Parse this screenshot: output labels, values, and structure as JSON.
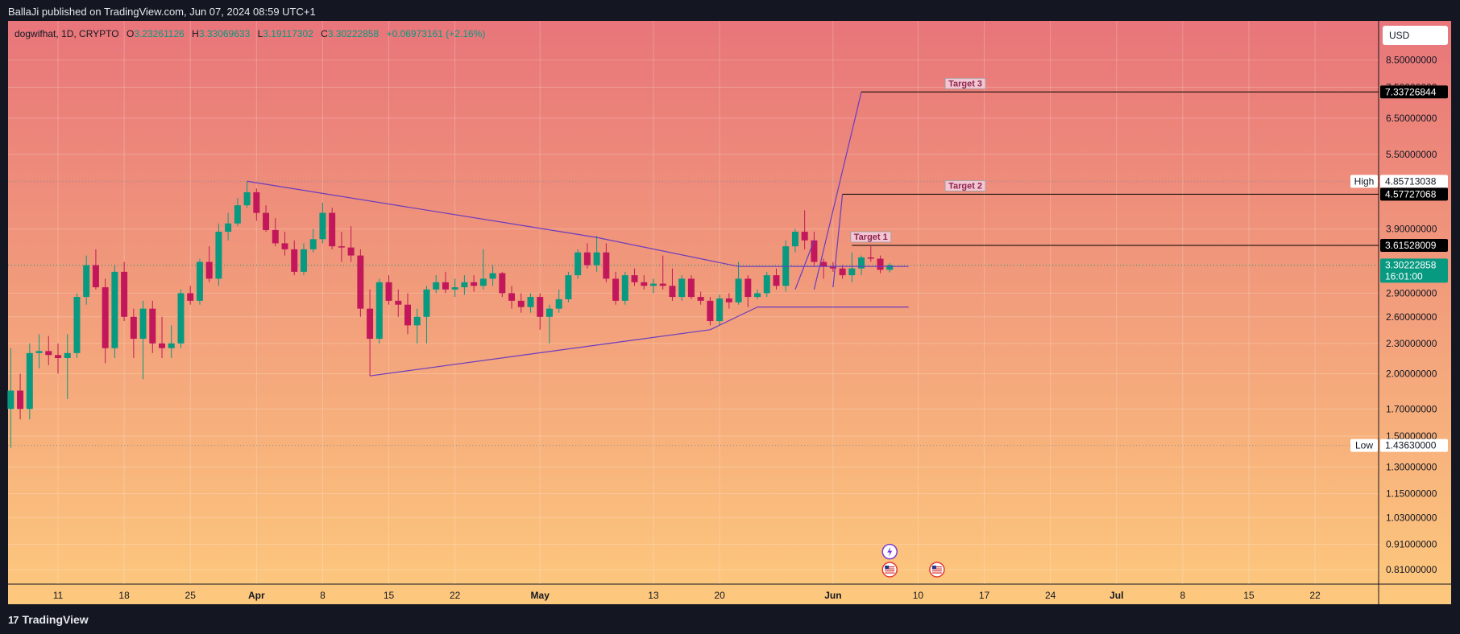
{
  "header": {
    "published_line": "BallaJi published on TradingView.com, Jun 07, 2024 08:59 UTC+1"
  },
  "legend": {
    "symbol": "dogwifhat, 1D, CRYPTO",
    "o_label": "O",
    "o_value": "3.23261126",
    "h_label": "H",
    "h_value": "3.33069633",
    "l_label": "L",
    "l_value": "3.19117302",
    "c_label": "C",
    "c_value": "3.30222858",
    "change": "+0.06973161 (+2.16%)"
  },
  "currency_button": "USD",
  "footer": {
    "brand": "TradingView",
    "brand_mark": "17"
  },
  "colors": {
    "bg_top": "#e8757a",
    "bg_bottom": "#fdc97d",
    "up": "#089981",
    "down": "#c2185b",
    "drawing": "#6a3bbf",
    "frame": "#141722",
    "current_price": "#089981"
  },
  "chart_data": {
    "type": "candlestick",
    "y_scale": "log",
    "y_range": [
      0.75,
      9.0
    ],
    "y_ticks": [
      {
        "value": 0.81,
        "label": "0.81000000"
      },
      {
        "value": 0.91,
        "label": "0.91000000"
      },
      {
        "value": 1.03,
        "label": "1.03000000"
      },
      {
        "value": 1.15,
        "label": "1.15000000"
      },
      {
        "value": 1.3,
        "label": "1.30000000"
      },
      {
        "value": 1.5,
        "label": "1.50000000"
      },
      {
        "value": 1.7,
        "label": "1.70000000"
      },
      {
        "value": 2.0,
        "label": "2.00000000"
      },
      {
        "value": 2.3,
        "label": "2.30000000"
      },
      {
        "value": 2.6,
        "label": "2.60000000"
      },
      {
        "value": 2.9,
        "label": "2.90000000"
      },
      {
        "value": 3.9,
        "label": "3.90000000"
      },
      {
        "value": 5.5,
        "label": "5.50000000"
      },
      {
        "value": 6.5,
        "label": "6.50000000"
      },
      {
        "value": 7.5,
        "label": "7.50000000"
      },
      {
        "value": 8.5,
        "label": "8.50000000"
      }
    ],
    "x_ticks": [
      {
        "date": "2024-03-11",
        "label": "11",
        "bold": false
      },
      {
        "date": "2024-03-18",
        "label": "18",
        "bold": false
      },
      {
        "date": "2024-03-25",
        "label": "25",
        "bold": false
      },
      {
        "date": "2024-04-01",
        "label": "Apr",
        "bold": true
      },
      {
        "date": "2024-04-08",
        "label": "8",
        "bold": false
      },
      {
        "date": "2024-04-15",
        "label": "15",
        "bold": false
      },
      {
        "date": "2024-04-22",
        "label": "22",
        "bold": false
      },
      {
        "date": "2024-05-01",
        "label": "May",
        "bold": true
      },
      {
        "date": "2024-05-13",
        "label": "13",
        "bold": false
      },
      {
        "date": "2024-05-20",
        "label": "20",
        "bold": false
      },
      {
        "date": "2024-06-01",
        "label": "Jun",
        "bold": true
      },
      {
        "date": "2024-06-10",
        "label": "10",
        "bold": false
      },
      {
        "date": "2024-06-17",
        "label": "17",
        "bold": false
      },
      {
        "date": "2024-06-24",
        "label": "24",
        "bold": false
      },
      {
        "date": "2024-07-01",
        "label": "Jul",
        "bold": true
      },
      {
        "date": "2024-07-08",
        "label": "8",
        "bold": false
      },
      {
        "date": "2024-07-15",
        "label": "15",
        "bold": false
      },
      {
        "date": "2024-07-22",
        "label": "22",
        "bold": false
      }
    ],
    "price_labels": [
      {
        "value": 7.33726844,
        "text": "7.33726844",
        "style": "black"
      },
      {
        "value": 4.85713038,
        "text": "4.85713038",
        "style": "white",
        "tag": "High"
      },
      {
        "value": 4.57727068,
        "text": "4.57727068",
        "style": "black"
      },
      {
        "value": 3.61528009,
        "text": "3.61528009",
        "style": "black"
      },
      {
        "value": 3.30222858,
        "text": "3.30222858",
        "sub": "16:01:00",
        "style": "current"
      },
      {
        "value": 1.4363,
        "text": "1.43630000",
        "style": "white",
        "tag": "Low"
      }
    ],
    "targets": [
      {
        "label": "Target 1",
        "value": 3.61528009,
        "from": "2024-06-03",
        "label_date": "2024-06-05"
      },
      {
        "label": "Target 2",
        "value": 4.57727068,
        "from": "2024-06-02",
        "label_date": "2024-06-15"
      },
      {
        "label": "Target 3",
        "value": 7.33726844,
        "from": "2024-06-04",
        "label_date": "2024-06-15"
      }
    ],
    "high_low": {
      "high": 4.85713038,
      "low": 1.4363
    },
    "candles": [
      {
        "d": "2024-03-06",
        "o": 1.7,
        "h": 2.25,
        "l": 1.42,
        "c": 1.85
      },
      {
        "d": "2024-03-07",
        "o": 1.85,
        "h": 2.0,
        "l": 1.62,
        "c": 1.7
      },
      {
        "d": "2024-03-08",
        "o": 1.7,
        "h": 2.3,
        "l": 1.62,
        "c": 2.2
      },
      {
        "d": "2024-03-09",
        "o": 2.2,
        "h": 2.4,
        "l": 2.05,
        "c": 2.22
      },
      {
        "d": "2024-03-10",
        "o": 2.22,
        "h": 2.38,
        "l": 2.08,
        "c": 2.18
      },
      {
        "d": "2024-03-11",
        "o": 2.18,
        "h": 2.3,
        "l": 2.0,
        "c": 2.15
      },
      {
        "d": "2024-03-12",
        "o": 2.15,
        "h": 2.4,
        "l": 1.78,
        "c": 2.2
      },
      {
        "d": "2024-03-13",
        "o": 2.2,
        "h": 2.9,
        "l": 2.15,
        "c": 2.85
      },
      {
        "d": "2024-03-14",
        "o": 2.85,
        "h": 3.45,
        "l": 2.75,
        "c": 3.3
      },
      {
        "d": "2024-03-15",
        "o": 3.3,
        "h": 3.55,
        "l": 2.95,
        "c": 2.98
      },
      {
        "d": "2024-03-16",
        "o": 2.98,
        "h": 3.1,
        "l": 2.1,
        "c": 2.25
      },
      {
        "d": "2024-03-17",
        "o": 2.25,
        "h": 3.3,
        "l": 2.15,
        "c": 3.2
      },
      {
        "d": "2024-03-18",
        "o": 3.2,
        "h": 3.35,
        "l": 2.55,
        "c": 2.6
      },
      {
        "d": "2024-03-19",
        "o": 2.6,
        "h": 2.7,
        "l": 2.15,
        "c": 2.35
      },
      {
        "d": "2024-03-20",
        "o": 2.35,
        "h": 2.8,
        "l": 1.95,
        "c": 2.7
      },
      {
        "d": "2024-03-21",
        "o": 2.7,
        "h": 2.8,
        "l": 2.2,
        "c": 2.3
      },
      {
        "d": "2024-03-22",
        "o": 2.3,
        "h": 2.6,
        "l": 2.15,
        "c": 2.25
      },
      {
        "d": "2024-03-23",
        "o": 2.25,
        "h": 2.5,
        "l": 2.15,
        "c": 2.3
      },
      {
        "d": "2024-03-24",
        "o": 2.3,
        "h": 2.95,
        "l": 2.25,
        "c": 2.9
      },
      {
        "d": "2024-03-25",
        "o": 2.9,
        "h": 3.0,
        "l": 2.75,
        "c": 2.8
      },
      {
        "d": "2024-03-26",
        "o": 2.8,
        "h": 3.4,
        "l": 2.75,
        "c": 3.35
      },
      {
        "d": "2024-03-27",
        "o": 3.35,
        "h": 3.6,
        "l": 3.05,
        "c": 3.1
      },
      {
        "d": "2024-03-28",
        "o": 3.1,
        "h": 4.0,
        "l": 3.0,
        "c": 3.85
      },
      {
        "d": "2024-03-29",
        "o": 3.85,
        "h": 4.2,
        "l": 3.7,
        "c": 4.0
      },
      {
        "d": "2024-03-30",
        "o": 4.0,
        "h": 4.5,
        "l": 3.95,
        "c": 4.35
      },
      {
        "d": "2024-03-31",
        "o": 4.35,
        "h": 4.86,
        "l": 4.3,
        "c": 4.62
      },
      {
        "d": "2024-04-01",
        "o": 4.62,
        "h": 4.7,
        "l": 4.05,
        "c": 4.2
      },
      {
        "d": "2024-04-02",
        "o": 4.2,
        "h": 4.35,
        "l": 3.85,
        "c": 3.88
      },
      {
        "d": "2024-04-03",
        "o": 3.88,
        "h": 4.1,
        "l": 3.6,
        "c": 3.65
      },
      {
        "d": "2024-04-04",
        "o": 3.65,
        "h": 3.85,
        "l": 3.45,
        "c": 3.55
      },
      {
        "d": "2024-04-05",
        "o": 3.55,
        "h": 3.7,
        "l": 3.15,
        "c": 3.2
      },
      {
        "d": "2024-04-06",
        "o": 3.2,
        "h": 3.65,
        "l": 3.15,
        "c": 3.55
      },
      {
        "d": "2024-04-07",
        "o": 3.55,
        "h": 3.9,
        "l": 3.5,
        "c": 3.72
      },
      {
        "d": "2024-04-08",
        "o": 3.72,
        "h": 4.4,
        "l": 3.65,
        "c": 4.2
      },
      {
        "d": "2024-04-09",
        "o": 4.2,
        "h": 4.3,
        "l": 3.55,
        "c": 3.6
      },
      {
        "d": "2024-04-10",
        "o": 3.6,
        "h": 3.85,
        "l": 3.35,
        "c": 3.58
      },
      {
        "d": "2024-04-11",
        "o": 3.58,
        "h": 3.95,
        "l": 3.35,
        "c": 3.45
      },
      {
        "d": "2024-04-12",
        "o": 3.45,
        "h": 3.55,
        "l": 2.6,
        "c": 2.7
      },
      {
        "d": "2024-04-13",
        "o": 2.7,
        "h": 2.95,
        "l": 1.98,
        "c": 2.35
      },
      {
        "d": "2024-04-14",
        "o": 2.35,
        "h": 3.1,
        "l": 2.3,
        "c": 3.05
      },
      {
        "d": "2024-04-15",
        "o": 3.05,
        "h": 3.15,
        "l": 2.75,
        "c": 2.8
      },
      {
        "d": "2024-04-16",
        "o": 2.8,
        "h": 2.95,
        "l": 2.6,
        "c": 2.75
      },
      {
        "d": "2024-04-17",
        "o": 2.75,
        "h": 2.9,
        "l": 2.4,
        "c": 2.5
      },
      {
        "d": "2024-04-18",
        "o": 2.5,
        "h": 2.7,
        "l": 2.3,
        "c": 2.6
      },
      {
        "d": "2024-04-19",
        "o": 2.6,
        "h": 3.0,
        "l": 2.3,
        "c": 2.95
      },
      {
        "d": "2024-04-20",
        "o": 2.95,
        "h": 3.15,
        "l": 2.9,
        "c": 3.05
      },
      {
        "d": "2024-04-21",
        "o": 3.05,
        "h": 3.2,
        "l": 2.9,
        "c": 2.95
      },
      {
        "d": "2024-04-22",
        "o": 2.95,
        "h": 3.1,
        "l": 2.85,
        "c": 2.98
      },
      {
        "d": "2024-04-23",
        "o": 2.98,
        "h": 3.15,
        "l": 2.88,
        "c": 3.05
      },
      {
        "d": "2024-04-24",
        "o": 3.05,
        "h": 3.15,
        "l": 2.92,
        "c": 3.0
      },
      {
        "d": "2024-04-25",
        "o": 3.0,
        "h": 3.55,
        "l": 2.95,
        "c": 3.1
      },
      {
        "d": "2024-04-26",
        "o": 3.1,
        "h": 3.3,
        "l": 3.0,
        "c": 3.18
      },
      {
        "d": "2024-04-27",
        "o": 3.18,
        "h": 3.2,
        "l": 2.85,
        "c": 2.9
      },
      {
        "d": "2024-04-28",
        "o": 2.9,
        "h": 3.0,
        "l": 2.7,
        "c": 2.8
      },
      {
        "d": "2024-04-29",
        "o": 2.8,
        "h": 2.9,
        "l": 2.65,
        "c": 2.72
      },
      {
        "d": "2024-04-30",
        "o": 2.72,
        "h": 2.9,
        "l": 2.65,
        "c": 2.85
      },
      {
        "d": "2024-05-01",
        "o": 2.85,
        "h": 2.9,
        "l": 2.45,
        "c": 2.6
      },
      {
        "d": "2024-05-02",
        "o": 2.6,
        "h": 2.75,
        "l": 2.3,
        "c": 2.7
      },
      {
        "d": "2024-05-03",
        "o": 2.7,
        "h": 2.95,
        "l": 2.65,
        "c": 2.82
      },
      {
        "d": "2024-05-04",
        "o": 2.82,
        "h": 3.2,
        "l": 2.78,
        "c": 3.15
      },
      {
        "d": "2024-05-05",
        "o": 3.15,
        "h": 3.55,
        "l": 3.1,
        "c": 3.5
      },
      {
        "d": "2024-05-06",
        "o": 3.5,
        "h": 3.65,
        "l": 3.25,
        "c": 3.3
      },
      {
        "d": "2024-05-07",
        "o": 3.3,
        "h": 3.78,
        "l": 3.2,
        "c": 3.5
      },
      {
        "d": "2024-05-08",
        "o": 3.5,
        "h": 3.65,
        "l": 3.05,
        "c": 3.1
      },
      {
        "d": "2024-05-09",
        "o": 3.1,
        "h": 3.2,
        "l": 2.75,
        "c": 2.8
      },
      {
        "d": "2024-05-10",
        "o": 2.8,
        "h": 3.2,
        "l": 2.75,
        "c": 3.15
      },
      {
        "d": "2024-05-11",
        "o": 3.15,
        "h": 3.25,
        "l": 3.0,
        "c": 3.05
      },
      {
        "d": "2024-05-12",
        "o": 3.05,
        "h": 3.15,
        "l": 2.95,
        "c": 3.0
      },
      {
        "d": "2024-05-13",
        "o": 3.0,
        "h": 3.1,
        "l": 2.9,
        "c": 3.03
      },
      {
        "d": "2024-05-14",
        "o": 3.03,
        "h": 3.45,
        "l": 2.95,
        "c": 3.0
      },
      {
        "d": "2024-05-15",
        "o": 3.0,
        "h": 3.25,
        "l": 2.8,
        "c": 2.85
      },
      {
        "d": "2024-05-16",
        "o": 2.85,
        "h": 3.15,
        "l": 2.8,
        "c": 3.1
      },
      {
        "d": "2024-05-17",
        "o": 3.1,
        "h": 3.15,
        "l": 2.82,
        "c": 2.85
      },
      {
        "d": "2024-05-18",
        "o": 2.85,
        "h": 2.92,
        "l": 2.75,
        "c": 2.8
      },
      {
        "d": "2024-05-19",
        "o": 2.8,
        "h": 2.85,
        "l": 2.5,
        "c": 2.55
      },
      {
        "d": "2024-05-20",
        "o": 2.55,
        "h": 2.88,
        "l": 2.5,
        "c": 2.83
      },
      {
        "d": "2024-05-21",
        "o": 2.83,
        "h": 2.9,
        "l": 2.7,
        "c": 2.78
      },
      {
        "d": "2024-05-22",
        "o": 2.78,
        "h": 3.35,
        "l": 2.75,
        "c": 3.1
      },
      {
        "d": "2024-05-23",
        "o": 3.1,
        "h": 3.15,
        "l": 2.72,
        "c": 2.85
      },
      {
        "d": "2024-05-24",
        "o": 2.85,
        "h": 2.95,
        "l": 2.82,
        "c": 2.9
      },
      {
        "d": "2024-05-25",
        "o": 2.9,
        "h": 3.2,
        "l": 2.85,
        "c": 3.15
      },
      {
        "d": "2024-05-26",
        "o": 3.15,
        "h": 3.25,
        "l": 2.95,
        "c": 3.0
      },
      {
        "d": "2024-05-27",
        "o": 3.0,
        "h": 3.7,
        "l": 2.92,
        "c": 3.6
      },
      {
        "d": "2024-05-28",
        "o": 3.6,
        "h": 3.9,
        "l": 3.5,
        "c": 3.85
      },
      {
        "d": "2024-05-29",
        "o": 3.85,
        "h": 4.25,
        "l": 3.55,
        "c": 3.7
      },
      {
        "d": "2024-05-30",
        "o": 3.7,
        "h": 3.85,
        "l": 3.28,
        "c": 3.35
      },
      {
        "d": "2024-05-31",
        "o": 3.35,
        "h": 3.4,
        "l": 3.1,
        "c": 3.28
      },
      {
        "d": "2024-06-01",
        "o": 3.28,
        "h": 3.35,
        "l": 3.2,
        "c": 3.25
      },
      {
        "d": "2024-06-02",
        "o": 3.25,
        "h": 3.3,
        "l": 3.1,
        "c": 3.15
      },
      {
        "d": "2024-06-03",
        "o": 3.15,
        "h": 3.5,
        "l": 3.05,
        "c": 3.25
      },
      {
        "d": "2024-06-04",
        "o": 3.25,
        "h": 3.45,
        "l": 3.15,
        "c": 3.42
      },
      {
        "d": "2024-06-05",
        "o": 3.42,
        "h": 3.6,
        "l": 3.35,
        "c": 3.4
      },
      {
        "d": "2024-06-06",
        "o": 3.4,
        "h": 3.45,
        "l": 3.18,
        "c": 3.23
      },
      {
        "d": "2024-06-07",
        "o": 3.23,
        "h": 3.33,
        "l": 3.19,
        "c": 3.3
      }
    ],
    "trendlines": [
      {
        "from": [
          "2024-03-31",
          4.86
        ],
        "to": [
          "2024-05-07",
          3.75
        ]
      },
      {
        "from": [
          "2024-05-07",
          3.75
        ],
        "to": [
          "2024-05-22",
          3.28
        ]
      },
      {
        "from": [
          "2024-04-13",
          1.98
        ],
        "to": [
          "2024-05-19",
          2.45
        ]
      },
      {
        "from": [
          "2024-05-19",
          2.45
        ],
        "to": [
          "2024-05-24",
          2.72
        ]
      },
      {
        "from": [
          "2024-05-22",
          3.28
        ],
        "to": [
          "2024-06-09",
          3.28
        ]
      },
      {
        "from": [
          "2024-05-24",
          2.72
        ],
        "to": [
          "2024-06-09",
          2.72
        ]
      },
      {
        "from": [
          "2024-05-28",
          2.95
        ],
        "to": [
          "2024-05-30",
          3.7
        ]
      },
      {
        "from": [
          "2024-05-30",
          2.95
        ],
        "to": [
          "2024-06-04",
          7.33726844
        ]
      },
      {
        "from": [
          "2024-06-01",
          2.98
        ],
        "to": [
          "2024-06-02",
          4.57727068
        ]
      }
    ],
    "event_markers": [
      {
        "date": "2024-06-07",
        "value": 0.88,
        "icon": "lightning-icon"
      },
      {
        "date": "2024-06-07",
        "value": 0.81,
        "icon": "us-flag-icon"
      },
      {
        "date": "2024-06-12",
        "value": 0.81,
        "icon": "us-flag-icon"
      }
    ]
  }
}
